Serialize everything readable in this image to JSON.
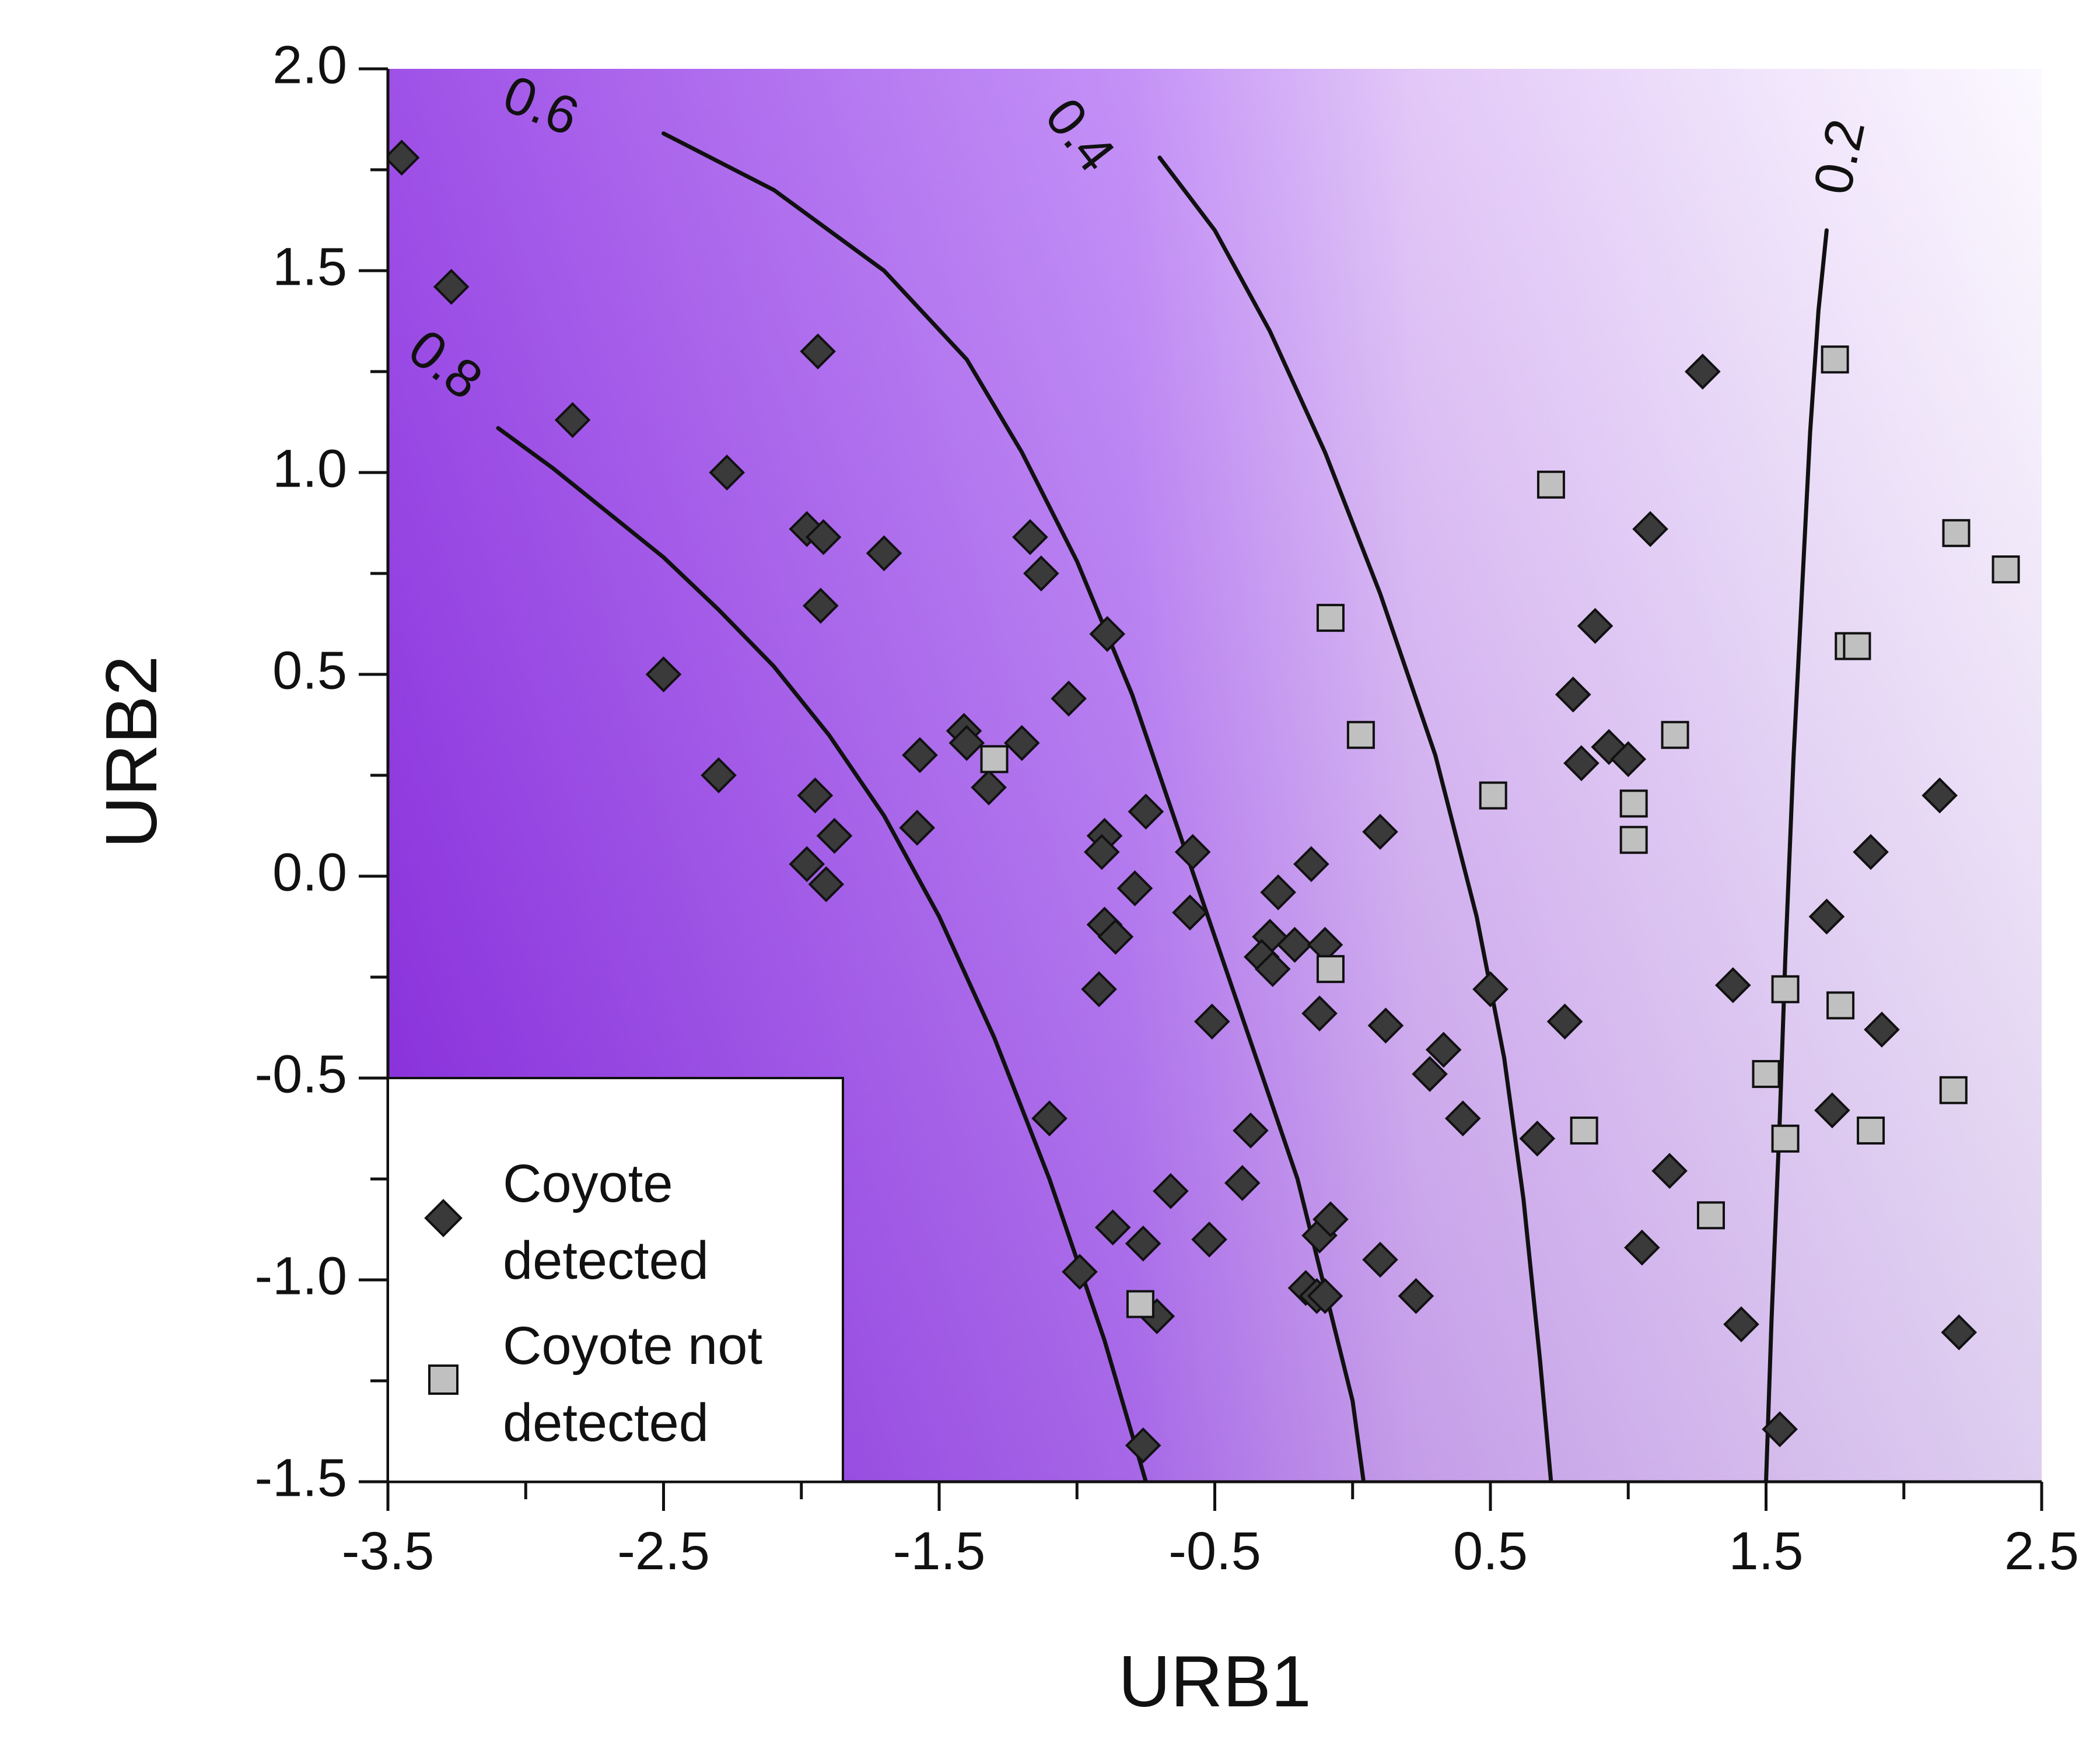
{
  "chart_data": {
    "type": "scatter",
    "xlabel": "URB1",
    "ylabel": "URB2",
    "xlim": [
      -3.5,
      2.5
    ],
    "ylim": [
      -1.5,
      2.0
    ],
    "x_ticks": [
      "-3.5",
      "-2.5",
      "-1.5",
      "-0.5",
      "0.5",
      "1.5",
      "2.5"
    ],
    "y_ticks": [
      "-1.5",
      "-1.0",
      "-0.5",
      "0.0",
      "0.5",
      "1.0",
      "1.5",
      "2.0"
    ],
    "background": "probability surface shaded purple, darkest at lower-left (high URB1 negative), fading to white at right",
    "colors": {
      "surface_high": "#8a2be2",
      "surface_mid": "#b77af5",
      "surface_low": "#f6eefe",
      "detected_marker": "#3a3a3a",
      "not_detected_marker": "#c0c0c0",
      "contour_line": "#111111"
    },
    "contours": [
      {
        "label": "0.8",
        "x": [
          -3.5,
          -3.3,
          -3.1,
          -2.9,
          -2.7,
          -2.5,
          -2.3,
          -2.1,
          -1.9,
          -1.7,
          -1.5,
          -1.3,
          -1.1,
          -0.9,
          -0.75
        ],
        "y": [
          1.36,
          1.22,
          1.11,
          1.01,
          0.9,
          0.79,
          0.66,
          0.52,
          0.35,
          0.15,
          -0.1,
          -0.4,
          -0.75,
          -1.15,
          -1.5
        ]
      },
      {
        "label": "0.6",
        "x": [
          -3.3,
          -2.9,
          -2.5,
          -2.1,
          -1.7,
          -1.4,
          -1.2,
          -1.0,
          -0.8,
          -0.6,
          -0.4,
          -0.2,
          0.0,
          0.04
        ],
        "y": [
          2.0,
          1.93,
          1.84,
          1.7,
          1.5,
          1.28,
          1.05,
          0.78,
          0.45,
          0.05,
          -0.35,
          -0.75,
          -1.3,
          -1.5
        ]
      },
      {
        "label": "0.4",
        "x": [
          -1.2,
          -0.9,
          -0.7,
          -0.5,
          -0.3,
          -0.1,
          0.1,
          0.3,
          0.45,
          0.55,
          0.62,
          0.68,
          0.72
        ],
        "y": [
          2.0,
          1.9,
          1.78,
          1.6,
          1.35,
          1.05,
          0.7,
          0.3,
          -0.1,
          -0.45,
          -0.8,
          -1.2,
          -1.5
        ]
      },
      {
        "label": "0.2",
        "x": [
          1.78,
          1.76,
          1.72,
          1.69,
          1.66,
          1.63,
          1.6,
          1.57,
          1.55,
          1.52,
          1.5
        ],
        "y": [
          2.0,
          1.8,
          1.6,
          1.4,
          1.1,
          0.7,
          0.3,
          -0.2,
          -0.6,
          -1.1,
          -1.5
        ]
      }
    ],
    "series": [
      {
        "name": "Coyote detected",
        "marker": "diamond",
        "points": [
          [
            -3.45,
            1.78
          ],
          [
            -3.27,
            1.46
          ],
          [
            -2.83,
            1.13
          ],
          [
            -2.27,
            1.0
          ],
          [
            -2.5,
            0.5
          ],
          [
            -2.3,
            0.25
          ],
          [
            -1.94,
            1.3
          ],
          [
            -1.98,
            0.86
          ],
          [
            -1.92,
            0.84
          ],
          [
            -1.93,
            0.67
          ],
          [
            -1.7,
            0.8
          ],
          [
            -1.57,
            0.3
          ],
          [
            -1.58,
            0.12
          ],
          [
            -1.95,
            0.2
          ],
          [
            -1.88,
            0.1
          ],
          [
            -1.98,
            0.03
          ],
          [
            -1.91,
            -0.02
          ],
          [
            -1.41,
            0.36
          ],
          [
            -1.4,
            0.33
          ],
          [
            -1.32,
            0.22
          ],
          [
            -1.2,
            0.33
          ],
          [
            -1.17,
            0.84
          ],
          [
            -1.13,
            0.75
          ],
          [
            -1.03,
            0.44
          ],
          [
            -0.89,
            0.6
          ],
          [
            -0.9,
            0.1
          ],
          [
            -0.91,
            0.06
          ],
          [
            -0.75,
            0.16
          ],
          [
            -0.79,
            -0.03
          ],
          [
            -0.9,
            -0.12
          ],
          [
            -0.86,
            -0.15
          ],
          [
            -0.92,
            -0.28
          ],
          [
            -0.58,
            0.06
          ],
          [
            -0.59,
            -0.09
          ],
          [
            -0.51,
            -0.36
          ],
          [
            -0.27,
            -0.04
          ],
          [
            -0.3,
            -0.15
          ],
          [
            -0.33,
            -0.2
          ],
          [
            -0.29,
            -0.23
          ],
          [
            -0.21,
            -0.17
          ],
          [
            -0.15,
            0.03
          ],
          [
            -0.12,
            -0.34
          ],
          [
            -0.1,
            -0.17
          ],
          [
            0.1,
            0.11
          ],
          [
            0.12,
            -0.37
          ],
          [
            0.33,
            -0.43
          ],
          [
            0.28,
            -0.49
          ],
          [
            0.4,
            -0.6
          ],
          [
            0.5,
            -0.28
          ],
          [
            0.67,
            -0.65
          ],
          [
            0.77,
            -0.36
          ],
          [
            0.8,
            0.45
          ],
          [
            0.83,
            0.28
          ],
          [
            0.88,
            0.62
          ],
          [
            0.93,
            0.32
          ],
          [
            1.0,
            0.29
          ],
          [
            1.08,
            0.86
          ],
          [
            1.27,
            1.25
          ],
          [
            -1.1,
            -0.6
          ],
          [
            -0.37,
            -0.63
          ],
          [
            -0.4,
            -0.76
          ],
          [
            -0.66,
            -0.78
          ],
          [
            -0.87,
            -0.87
          ],
          [
            -0.76,
            -0.91
          ],
          [
            -0.52,
            -0.9
          ],
          [
            -0.99,
            -0.98
          ],
          [
            -0.71,
            -1.09
          ],
          [
            -0.76,
            -1.41
          ],
          [
            -0.17,
            -1.02
          ],
          [
            -0.13,
            -1.04
          ],
          [
            -0.1,
            -1.04
          ],
          [
            -0.12,
            -0.89
          ],
          [
            -0.08,
            -0.85
          ],
          [
            0.1,
            -0.95
          ],
          [
            0.23,
            -1.04
          ],
          [
            1.05,
            -0.92
          ],
          [
            1.15,
            -0.73
          ],
          [
            1.41,
            -1.11
          ],
          [
            1.55,
            -1.37
          ],
          [
            1.38,
            -0.27
          ],
          [
            1.72,
            -0.1
          ],
          [
            1.88,
            0.06
          ],
          [
            1.74,
            -0.58
          ],
          [
            1.92,
            -0.38
          ],
          [
            2.13,
            0.2
          ],
          [
            2.2,
            -1.13
          ]
        ]
      },
      {
        "name": "Coyote not detected",
        "marker": "square",
        "points": [
          [
            -1.3,
            0.29
          ],
          [
            -0.08,
            0.64
          ],
          [
            0.03,
            0.35
          ],
          [
            -0.08,
            -0.23
          ],
          [
            0.51,
            0.2
          ],
          [
            0.72,
            0.97
          ],
          [
            1.02,
            0.18
          ],
          [
            1.02,
            0.09
          ],
          [
            1.17,
            0.35
          ],
          [
            0.84,
            -0.63
          ],
          [
            1.3,
            -0.84
          ],
          [
            -0.77,
            -1.06
          ],
          [
            1.5,
            -0.49
          ],
          [
            1.57,
            -0.28
          ],
          [
            1.57,
            -0.65
          ],
          [
            1.75,
            1.28
          ],
          [
            1.8,
            0.57
          ],
          [
            1.83,
            0.57
          ],
          [
            1.77,
            -0.32
          ],
          [
            1.88,
            -0.63
          ],
          [
            2.19,
            0.85
          ],
          [
            2.37,
            0.76
          ],
          [
            2.18,
            -0.53
          ]
        ]
      }
    ],
    "legend": {
      "placement": "bottom-left",
      "entries": [
        "Coyote\ndetected",
        "Coyote not\ndetected"
      ],
      "detected_line1": "Coyote",
      "detected_line2": "detected",
      "not_detected_line1": "Coyote not",
      "not_detected_line2": "detected"
    },
    "contour_labels": [
      "0.8",
      "0.6",
      "0.4",
      "0.2"
    ]
  }
}
